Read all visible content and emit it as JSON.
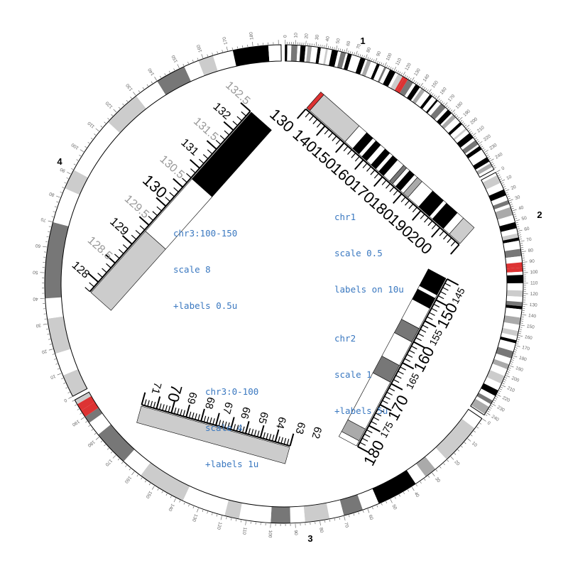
{
  "colors": {
    "ideogram_outline": "#000000",
    "band_black": "#000000",
    "band_dark": "#777777",
    "band_mid": "#aaaaaa",
    "band_light": "#cccccc",
    "band_white": "#ffffff",
    "centromere": "#dd3333",
    "annotation_text": "#3a78c0",
    "zoom_label_grey": "#999999"
  },
  "chromosomes": [
    {
      "name": "1",
      "label": "1"
    },
    {
      "name": "2",
      "label": "2"
    },
    {
      "name": "3",
      "label": "3"
    },
    {
      "name": "4",
      "label": "4"
    }
  ],
  "chr1_tick_labels": [
    "0",
    "10",
    "20",
    "30",
    "40",
    "50",
    "60",
    "70",
    "80",
    "90",
    "100",
    "110",
    "120",
    "130",
    "140",
    "150",
    "160",
    "170",
    "180",
    "190",
    "200",
    "210",
    "220",
    "230",
    "240"
  ],
  "chr2_tick_labels": [
    "0",
    "10",
    "20",
    "30",
    "40",
    "50",
    "60",
    "70",
    "80",
    "90",
    "100",
    "110",
    "120",
    "130",
    "140",
    "150",
    "160",
    "170",
    "180",
    "190",
    "200",
    "210",
    "220",
    "230",
    "240"
  ],
  "chr3_tick_labels": [
    "0",
    "10",
    "20",
    "30",
    "40",
    "50",
    "60",
    "70",
    "80",
    "90",
    "100",
    "110",
    "120",
    "130",
    "140",
    "150",
    "160",
    "170",
    "180",
    "190"
  ],
  "chr4_tick_labels": [
    "0",
    "10",
    "20",
    "30",
    "40",
    "50",
    "60",
    "70",
    "80",
    "90",
    "100",
    "110",
    "120",
    "130",
    "140",
    "150",
    "160",
    "170",
    "180"
  ],
  "annotations": [
    {
      "id": "chr1",
      "lines": [
        "chr1",
        "scale 0.5",
        "labels on 10u"
      ]
    },
    {
      "id": "chr2",
      "lines": [
        "chr2",
        "scale 1",
        "+labels 5u"
      ]
    },
    {
      "id": "chr3a",
      "lines": [
        "chr3:0-100",
        "scale 4",
        "+labels 1u"
      ]
    },
    {
      "id": "chr3b",
      "lines": [
        "chr3:100-150",
        "scale 8",
        "+labels 0.5u"
      ]
    }
  ],
  "zoom_chr1": {
    "major_labels": [
      "130",
      "140",
      "150",
      "160",
      "170",
      "180",
      "190",
      "200"
    ]
  },
  "zoom_chr2": {
    "major_labels": [
      "145",
      "150",
      "155",
      "160",
      "165",
      "170",
      "175",
      "180"
    ]
  },
  "zoom_chr3a": {
    "major_labels": [
      "71",
      "70",
      "69",
      "68",
      "67",
      "66",
      "65",
      "64",
      "63",
      "62"
    ]
  },
  "zoom_chr3b": {
    "major_labels": [
      "128",
      "128.5",
      "129",
      "129.5",
      "130",
      "130.5",
      "131",
      "131.5",
      "132",
      "132.5"
    ]
  }
}
